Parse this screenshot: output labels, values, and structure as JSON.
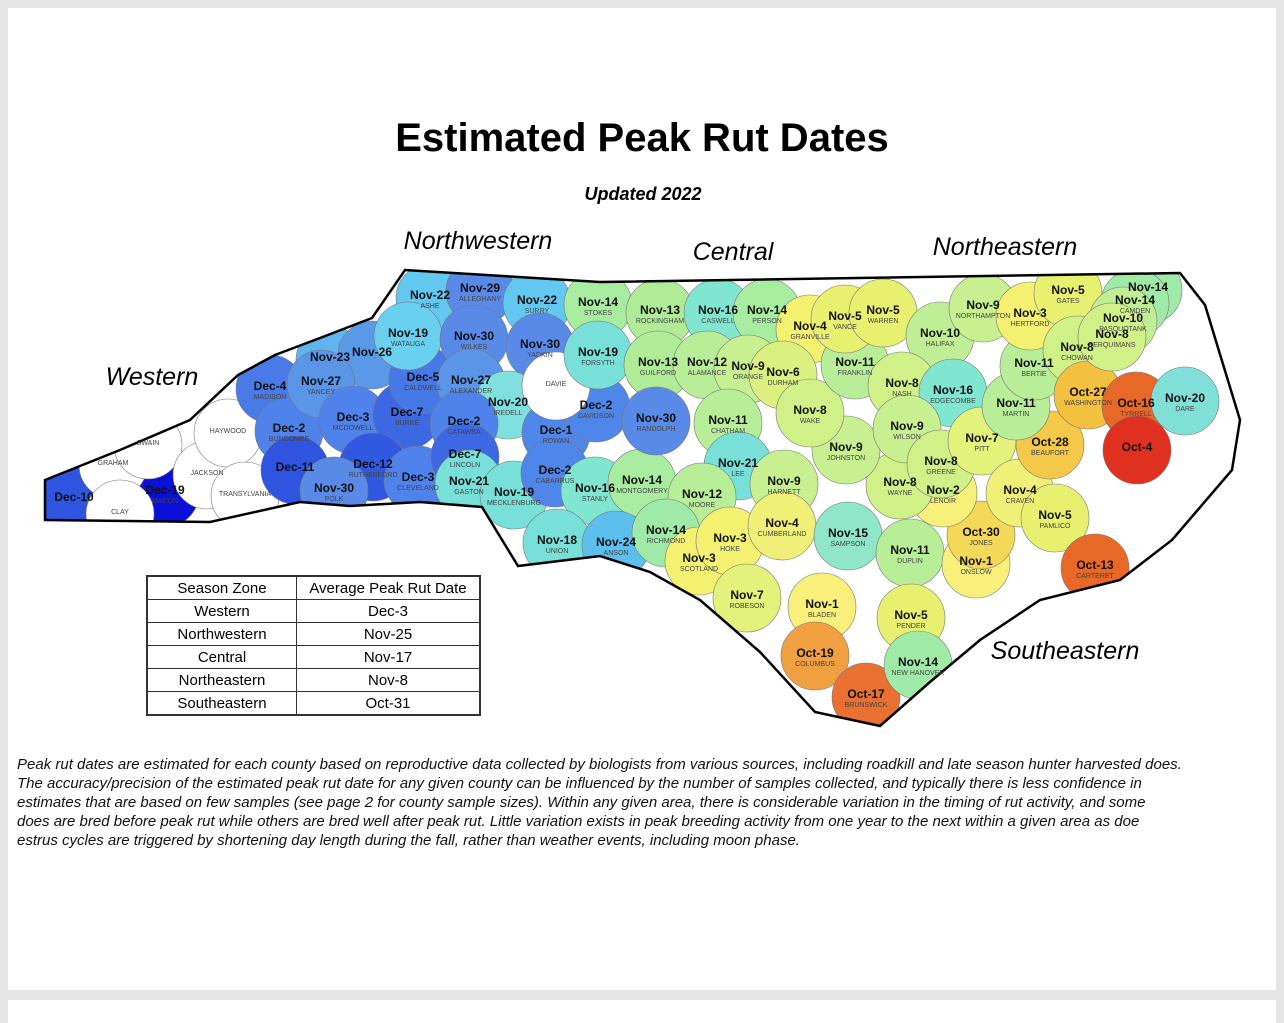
{
  "header": {
    "title": "Estimated Peak Rut Dates",
    "subtitle": "Updated 2022"
  },
  "map": {
    "regions": [
      "Northwestern",
      "Central",
      "Northeastern",
      "Western",
      "Southeastern"
    ],
    "counties": [
      {
        "date": "Dec-10",
        "color": "#2e54e0"
      },
      {
        "date": "Dec-19",
        "name": "MACON",
        "color": "#0a10d8"
      },
      {
        "name": "GRAHAM",
        "color": "#ffffff"
      },
      {
        "name": "SWAIN",
        "color": "#ffffff"
      },
      {
        "name": "CLAY",
        "color": "#ffffff"
      },
      {
        "name": "JACKSON",
        "color": "#ffffff"
      },
      {
        "name": "HAYWOOD",
        "color": "#ffffff"
      },
      {
        "name": "TRANSYLVANIA",
        "color": "#ffffff"
      },
      {
        "date": "Dec-4",
        "name": "MADISON",
        "color": "#4a7ae8"
      },
      {
        "date": "Dec-2",
        "name": "BUNCOMBE",
        "color": "#4f82ea"
      },
      {
        "date": "Dec-11",
        "color": "#2e54e0"
      },
      {
        "date": "Nov-23",
        "color": "#5fb6ee"
      },
      {
        "date": "Nov-26",
        "color": "#5a98e8"
      },
      {
        "date": "Nov-27",
        "name": "YANCEY",
        "color": "#5a95e8"
      },
      {
        "date": "Dec-3",
        "name": "MCDOWELL",
        "color": "#4f82ea"
      },
      {
        "date": "Dec-7",
        "name": "BURKE",
        "color": "#3c68e4"
      },
      {
        "date": "Dec-5",
        "name": "CALDWELL",
        "color": "#4678e8"
      },
      {
        "date": "Dec-12",
        "name": "RUTHERFORD",
        "color": "#3058e0"
      },
      {
        "date": "Nov-30",
        "name": "POLK",
        "color": "#5a8ae8"
      },
      {
        "date": "Dec-3",
        "name": "CLEVELAND",
        "color": "#4f82ea"
      },
      {
        "date": "Nov-22",
        "name": "ASHE",
        "color": "#62c8f0"
      },
      {
        "date": "Nov-29",
        "name": "ALLEGHANY",
        "color": "#5a8ae8"
      },
      {
        "date": "Nov-19",
        "name": "WATAUGA",
        "color": "#6ad0f0"
      },
      {
        "date": "Nov-30",
        "name": "WILKES",
        "color": "#5a8ae8"
      },
      {
        "date": "Nov-22",
        "name": "SURRY",
        "color": "#62c8f0"
      },
      {
        "date": "Nov-30",
        "name": "YADKIN",
        "color": "#5a8ae8"
      },
      {
        "date": "Nov-27",
        "name": "ALEXANDER",
        "color": "#5a95e8"
      },
      {
        "date": "Nov-20",
        "name": "IREDELL",
        "color": "#80e0e0"
      },
      {
        "date": "Dec-2",
        "name": "CATAWBA",
        "color": "#4f82ea"
      },
      {
        "date": "Dec-7",
        "name": "LINCOLN",
        "color": "#3c68e4"
      },
      {
        "date": "Nov-21",
        "name": "GASTON",
        "color": "#78e0d8"
      },
      {
        "date": "Nov-19",
        "name": "MECKLENBURG",
        "color": "#78e0d8"
      },
      {
        "date": "Dec-1",
        "name": "ROWAN",
        "color": "#4f86ea"
      },
      {
        "date": "Dec-2",
        "name": "DAVIDSON",
        "color": "#4f86ea"
      },
      {
        "name": "DAVIE",
        "color": "#ffffff"
      },
      {
        "date": "Dec-2",
        "name": "CABARRUS",
        "color": "#4f86ea"
      },
      {
        "date": "Nov-16",
        "name": "STANLY",
        "color": "#80e6d0"
      },
      {
        "date": "Nov-14",
        "name": "MONTGOMERY",
        "color": "#a8eca0"
      },
      {
        "date": "Nov-18",
        "name": "UNION",
        "color": "#78e0d8"
      },
      {
        "date": "Nov-24",
        "name": "ANSON",
        "color": "#5cc0ee"
      },
      {
        "date": "Nov-14",
        "name": "STOKES",
        "color": "#a8eca0"
      },
      {
        "date": "Nov-19",
        "name": "FORSYTH",
        "color": "#78e0d8"
      },
      {
        "date": "Nov-13",
        "name": "ROCKINGHAM",
        "color": "#b0ec98"
      },
      {
        "date": "Nov-13",
        "name": "GUILFORD",
        "color": "#b0ec98"
      },
      {
        "date": "Nov-30",
        "name": "RANDOLPH",
        "color": "#5a8ae8"
      },
      {
        "date": "Nov-16",
        "name": "CASWELL",
        "color": "#80e6d0"
      },
      {
        "date": "Nov-14",
        "name": "PERSON",
        "color": "#a8eca0"
      },
      {
        "date": "Nov-12",
        "name": "ALAMANCE",
        "color": "#b8ee98"
      },
      {
        "date": "Nov-9",
        "name": "ORANGE",
        "color": "#c8f090"
      },
      {
        "date": "Nov-4",
        "name": "GRANVILLE",
        "color": "#f4f070"
      },
      {
        "date": "Nov-6",
        "name": "DURHAM",
        "color": "#dcf080"
      },
      {
        "date": "Nov-11",
        "name": "CHATHAM",
        "color": "#b8ee98"
      },
      {
        "date": "Nov-21",
        "name": "LEE",
        "color": "#78e0d8"
      },
      {
        "date": "Nov-12",
        "name": "MOORE",
        "color": "#b8ee98"
      },
      {
        "date": "Nov-14",
        "name": "RICHMOND",
        "color": "#a0eaa8"
      },
      {
        "date": "Nov-3",
        "name": "SCOTLAND",
        "color": "#f4f070"
      },
      {
        "date": "Nov-3",
        "name": "HOKE",
        "color": "#f4f070"
      },
      {
        "date": "Nov-9",
        "name": "HARNETT",
        "color": "#c8f090"
      },
      {
        "date": "Nov-4",
        "name": "CUMBERLAND",
        "color": "#f0f078"
      },
      {
        "date": "Nov-7",
        "name": "ROBESON",
        "color": "#e2f27a"
      },
      {
        "date": "Nov-1",
        "name": "BLADEN",
        "color": "#f8f07a"
      },
      {
        "date": "Oct-19",
        "name": "COLUMBUS",
        "color": "#f0a040"
      },
      {
        "date": "Oct-17",
        "name": "BRUNSWICK",
        "color": "#e87030"
      },
      {
        "date": "Nov-15",
        "name": "SAMPSON",
        "color": "#90e6c8"
      },
      {
        "date": "Nov-11",
        "name": "DUPLIN",
        "color": "#b8ee98"
      },
      {
        "date": "Nov-5",
        "name": "PENDER",
        "color": "#e8f070"
      },
      {
        "date": "Nov-14",
        "name": "NEW HANOVER",
        "color": "#a0eaa8"
      },
      {
        "date": "Nov-1",
        "name": "ONSLOW",
        "color": "#f8f07a"
      },
      {
        "date": "Oct-30",
        "name": "JONES",
        "color": "#f4d858"
      },
      {
        "date": "Nov-2",
        "name": "LENOIR",
        "color": "#f6f078"
      },
      {
        "date": "Nov-8",
        "name": "WAYNE",
        "color": "#d0f088"
      },
      {
        "date": "Nov-9",
        "name": "JOHNSTON",
        "color": "#c8f090"
      },
      {
        "date": "Nov-8",
        "name": "WAKE",
        "color": "#d0f088"
      },
      {
        "date": "Nov-11",
        "name": "FRANKLIN",
        "color": "#b8ee98"
      },
      {
        "date": "Nov-5",
        "name": "VANCE",
        "color": "#e8f070"
      },
      {
        "date": "Nov-5",
        "name": "WARREN",
        "color": "#e8f070"
      },
      {
        "date": "Nov-10",
        "name": "HALIFAX",
        "color": "#c0ee94"
      },
      {
        "date": "Nov-9",
        "name": "NORTHAMPTON",
        "color": "#c8f090"
      },
      {
        "date": "Nov-8",
        "name": "NASH",
        "color": "#d0f088"
      },
      {
        "date": "Nov-16",
        "name": "EDGECOMBE",
        "color": "#80e6d0"
      },
      {
        "date": "Nov-9",
        "name": "WILSON",
        "color": "#c8f090"
      },
      {
        "date": "Nov-8",
        "name": "GREENE",
        "color": "#d0f088"
      },
      {
        "date": "Nov-7",
        "name": "PITT",
        "color": "#e2f27a"
      },
      {
        "date": "Nov-4",
        "name": "CRAVEN",
        "color": "#f0f078"
      },
      {
        "date": "Nov-5",
        "name": "PAMLICO",
        "color": "#e8f070"
      },
      {
        "date": "Oct-13",
        "name": "CARTERET",
        "color": "#e86828"
      },
      {
        "date": "Oct-28",
        "name": "BEAUFORT",
        "color": "#f4c848"
      },
      {
        "date": "Nov-11",
        "name": "MARTIN",
        "color": "#b8ee98"
      },
      {
        "date": "Nov-11",
        "name": "BERTIE",
        "color": "#b8ee98"
      },
      {
        "date": "Nov-3",
        "name": "HERTFORD",
        "color": "#f4f070"
      },
      {
        "date": "Nov-5",
        "name": "GATES",
        "color": "#e8f070"
      },
      {
        "date": "Nov-8",
        "name": "CHOWAN",
        "color": "#d0f088"
      },
      {
        "date": "Oct-27",
        "name": "WASHINGTON",
        "color": "#f4c040"
      },
      {
        "date": "Oct-16",
        "name": "TYRRELL",
        "color": "#e86828"
      },
      {
        "date": "Oct-4",
        "color": "#e03020"
      },
      {
        "date": "Nov-20",
        "name": "DARE",
        "color": "#80e0d8"
      },
      {
        "date": "Nov-14",
        "color": "#a0eaa8"
      },
      {
        "date": "Nov-14",
        "name": "CAMDEN",
        "color": "#a0eaa8"
      },
      {
        "date": "Nov-10",
        "name": "PASQUOTANK",
        "color": "#c0ee94"
      },
      {
        "date": "Nov-8",
        "name": "PERQUIMANS",
        "color": "#d0f088"
      }
    ]
  },
  "table": {
    "columns": [
      "Season Zone",
      "Average Peak Rut Date"
    ],
    "rows": [
      [
        "Western",
        "Dec-3"
      ],
      [
        "Northwestern",
        "Nov-25"
      ],
      [
        "Central",
        "Nov-17"
      ],
      [
        "Northeastern",
        "Nov-8"
      ],
      [
        "Southeastern",
        "Oct-31"
      ]
    ]
  },
  "note": [
    "Peak rut dates are estimated for each county based on reproductive data collected by biologists from various sources, including roadkill and late season hunter harvested does.",
    "The accuracy/precision of the estimated peak rut date for any given county can be influenced by the number of samples collected, and typically there is less confidence in",
    "estimates that are based on few samples (see page 2 for county sample sizes).  Within any given area, there is considerable variation in the timing of rut activity, and some",
    "does are bred before peak rut while others are bred well after peak rut.  Little variation exists in peak breeding activity from one year to the next within a given area as doe",
    "estrus cycles are triggered by shortening day length during the fall, rather than weather events, including moon phase."
  ]
}
